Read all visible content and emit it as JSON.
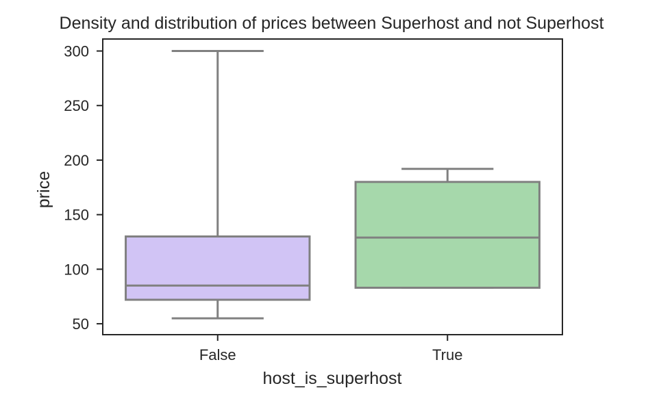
{
  "chart_data": {
    "type": "boxplot",
    "title": "Density and distribution of prices between Superhost and not Superhost",
    "xlabel": "host_is_superhost",
    "ylabel": "price",
    "categories": [
      "False",
      "True"
    ],
    "ylim": [
      40,
      311
    ],
    "yticks": [
      50,
      100,
      150,
      200,
      250,
      300
    ],
    "grid": false,
    "legend": "none",
    "boxes": [
      {
        "category": "False",
        "whisker_low": 55,
        "q1": 72,
        "median": 85,
        "q3": 130,
        "whisker_high": 300,
        "color": "#d1c4f5"
      },
      {
        "category": "True",
        "whisker_low": 83,
        "q1": 83,
        "median": 129,
        "q3": 180,
        "whisker_high": 192,
        "color": "#a6d8ab"
      }
    ],
    "line_color": "#808080",
    "axis_color": "#262626"
  }
}
